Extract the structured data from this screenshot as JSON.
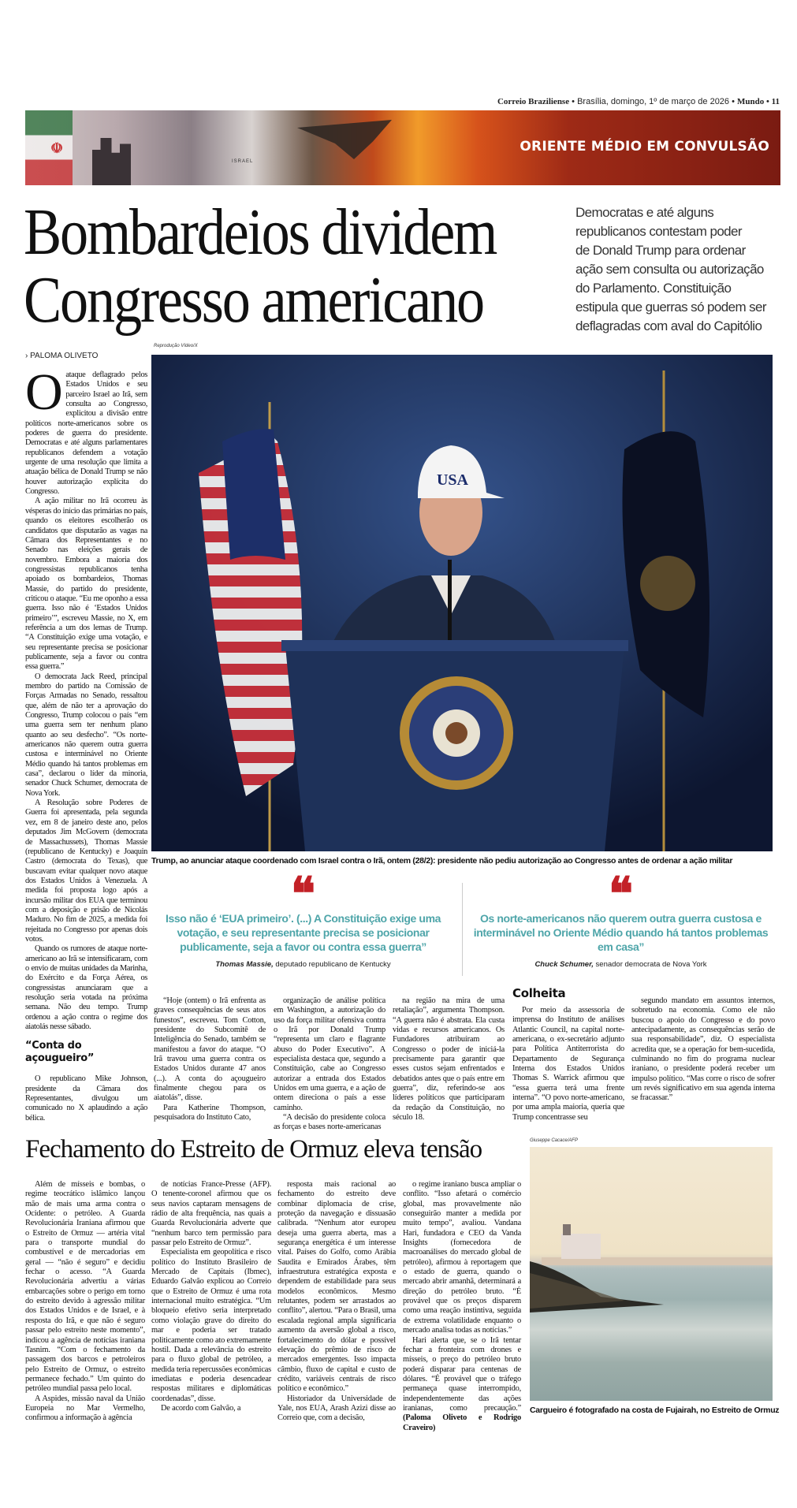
{
  "folio": {
    "paper": "Correio Braziliense",
    "date": "• Brasília, domingo, 1º de março de 2026 •",
    "section": "Mundo • 11"
  },
  "banner": {
    "title": "ORIENTE MÉDIO EM CONVULSÃO",
    "map_label": "ISRAEL"
  },
  "headline": [
    "Bombardeios dividem",
    "Congresso americano"
  ],
  "deck": [
    "Democratas e até alguns",
    "republicanos contestam poder",
    "de Donald Trump para ordenar",
    "ação sem consulta ou autorização",
    "do Parlamento. Constituição",
    "estipula que guerras só podem ser",
    "deflagradas com aval do Capitólio"
  ],
  "byline": "› PALOMA OLIVETO",
  "main_photo": {
    "credit": "Reprodução Vídeo/X",
    "cap_text": "USA",
    "caption": "Trump, ao anunciar ataque coordenado com Israel contra o Irã, ontem (28/2): presidente não pediu autorização ao Congresso antes de ordenar a ação militar"
  },
  "colors": {
    "quote_mark": "#c32127",
    "quote_text": "#4ea5a9"
  },
  "quotes": [
    {
      "text": "Isso não é ‘EUA primeiro’. (...) A Constituição exige uma votação, e seu representante precisa se posicionar publicamente, seja a favor ou contra essa guerra”",
      "name": "Thomas Massie,",
      "role": " deputado republicano de Kentucky"
    },
    {
      "text": "Os norte-americanos não querem outra guerra custosa e interminável no Oriente Médio quando há tantos problemas em casa”",
      "name": "Chuck Schumer,",
      "role": " senador democrata de Nova York"
    }
  ],
  "article1": {
    "dropcap": "O",
    "lead": " ataque deflagrado pelos Estados Unidos e seu parceiro Israel ao Irã, sem consulta ao Congresso, explicitou a divisão entre políticos norte-americanos sobre os poderes de guerra do presidente. Democratas e até alguns parlamentares republicanos defendem a votação urgente de uma resolução que limita a atuação bélica de Donald Trump se não houver autorização explícita do Congresso.",
    "col1": [
      "A ação militar no Irã ocorreu às vésperas do início das primárias no país, quando os eleitores escolherão os candidatos que disputarão as vagas na Câmara dos Representantes e no Senado nas eleições gerais de novembro. Embora a maioria dos congressistas republicanos tenha apoiado os bombardeios, Thomas Massie, do partido do presidente, criticou o ataque. “Eu me oponho a essa guerra. Isso não é ‘Estados Unidos primeiro’”, escreveu Massie, no X, em referência a um dos lemas de Trump. “A Constituição exige uma votação, e seu representante precisa se posicionar publicamente, seja a favor ou contra essa guerra.”",
      "O democrata Jack Reed, principal membro do partido na Comissão de Forças Armadas no Senado, ressaltou que, além de não ter a aprovação do Congresso, Trump colocou o país “em uma guerra sem ter nenhum plano quanto ao seu desfecho”. “Os norte-americanos não querem outra guerra custosa e interminável no Oriente Médio quando há tantos problemas em casa”, declarou o líder da minoria, senador Chuck Schumer, democrata de Nova York.",
      "A Resolução sobre Poderes de Guerra foi apresentada, pela segunda vez, em 8 de janeiro deste ano, pelos deputados Jim McGovern (democrata de Massachussets), Thomas Massie (republicano de Kentucky) e Joaquin Castro (democrata do Texas), que buscavam evitar qualquer novo ataque dos Estados Unidos à Venezuela. A medida foi proposta logo após a incursão militar dos EUA que terminou com a deposição e prisão de Nicolás Maduro. No fim de 2025, a medida foi rejeitada no Congresso por apenas dois votos.",
      "Quando os rumores de ataque norte-americano ao Irã se intensificaram, com o envio de muitas unidades da Marinha, do Exército e da Força Aérea, os congressistas anunciaram que a resolução seria votada na próxima semana. Não deu tempo. Trump ordenou a ação contra o regime dos aiatolás nesse sábado."
    ],
    "subhead1": "“Conta do açougueiro”",
    "col1_after": [
      "O republicano Mike Johnson, presidente da Câmara dos Representantes, divulgou um comunicado no X aplaudindo a ação bélica."
    ],
    "lower_cols": [
      [
        "“Hoje (ontem) o Irã enfrenta as graves consequências de seus atos funestos”, escreveu. Tom Cotton, presidente do Subcomitê de Inteligência do Senado, também se manifestou a favor do ataque. “O Irã travou uma guerra contra os Estados Unidos durante 47 anos (...). A conta do açougueiro finalmente chegou para os aiatolás”, disse.",
        "Para Katherine Thompson, pesquisadora do Instituto Cato,"
      ],
      [
        "organização de análise política em Washington, a autorização do uso da força militar ofensiva contra o Irã por Donald Trump “representa um claro e flagrante abuso do Poder Executivo”. A especialista destaca que, segundo a Constituição, cabe ao Congresso autorizar a entrada dos Estados Unidos em uma guerra, e a ação de ontem direciona o país a esse caminho.",
        "“A decisão do presidente coloca as forças e bases norte-americanas"
      ],
      [
        "na região na mira de uma retaliação”, argumenta Thompson. “A guerra não é abstrata. Ela custa vidas e recursos americanos. Os Fundadores atribuíram ao Congresso o poder de iniciá-la precisamente para garantir que esses custos sejam enfrentados e debatidos antes que o país entre em guerra”, diz, referindo-se aos líderes políticos que participaram da redação da Constituição, no século 18."
      ],
      [
        "Por meio da assessoria de imprensa do Instituto de análises Atlantic Council, na capital norte-americana, o ex-secretário adjunto para Política Antiterrorista do Departamento de Segurança Interna dos Estados Unidos Thomas S. Warrick afirmou que “essa guerra terá uma frente interna”. “O povo norte-americano, por uma ampla maioria, queria que Trump concentrasse seu"
      ],
      [
        "segundo mandato em assuntos internos, sobretudo na economia. Como ele não buscou o apoio do Congresso e do povo antecipadamente, as consequências serão de sua responsabilidade”, diz. O especialista acredita que, se a operação for bem-sucedida, culminando no fim do programa nuclear iraniano, o presidente poderá receber um impulso político. “Mas corre o risco de sofrer um revés significativo em sua agenda interna se fracassar.”"
      ]
    ],
    "subhead2": "Colheita"
  },
  "article2": {
    "headline": "Fechamento do Estreito de Ormuz eleva tensão",
    "cols": [
      [
        "Além de mísseis e bombas, o regime teocrático islâmico lançou mão de mais uma arma contra o Ocidente: o petróleo. A Guarda Revolucionária Iraniana afirmou que o Estreito de Ormuz — artéria vital para o transporte mundial do combustível e de mercadorias em geral — “não é seguro” e decidiu fechar o acesso. “A Guarda Revolucionária advertiu a várias embarcações sobre o perigo em torno do estreito devido à agressão militar dos Estados Unidos e de Israel, e à resposta do Irã, e que não é seguro passar pelo estreito neste momento”, indicou a agência de notícias iraniana Tasnim. “Com o fechamento da passagem dos barcos e petroleiros pelo Estreito de Ormuz, o estreito permanece fechado.” Um quinto do petróleo mundial passa pelo local.",
        "A Aspides, missão naval da União Europeia no Mar Vermelho, confirmou a informação à agência"
      ],
      [
        "de notícias France-Presse (AFP). O tenente-coronel afirmou que os seus navios captaram mensagens de rádio de alta frequência, nas quais a Guarda Revolucionária adverte que “nenhum barco tem permissão para passar pelo Estreito de Ormuz”.",
        "Especialista em geopolítica e risco político do Instituto Brasileiro de Mercado de Capitais (Ibmec), Eduardo Galvão explicou ao Correio que o Estreito de Ormuz é uma rota internacional muito estratégica. “Um bloqueio efetivo seria interpretado como violação grave do direito do mar e poderia ser tratado politicamente como ato extremamente hostil. Dada a relevância do estreito para o fluxo global de petróleo, a medida teria repercussões econômicas imediatas e poderia desencadear respostas militares e diplomáticas coordenadas”, disse.",
        "De acordo com Galvão, a"
      ],
      [
        "resposta mais racional ao fechamento do estreito deve combinar diplomacia de crise, proteção da navegação e dissuasão calibrada. “Nenhum ator europeu deseja uma guerra aberta, mas a segurança energética é um interesse vital. Países do Golfo, como Arábia Saudita e Emirados Árabes, têm infraestrutura estratégica exposta e dependem de estabilidade para seus modelos econômicos. Mesmo relutantes, podem ser arrastados ao conflito”, alertou. “Para o Brasil, uma escalada regional ampla significaria aumento da aversão global a risco, fortalecimento do dólar e possível elevação do prêmio de risco de mercados emergentes. Isso impacta câmbio, fluxo de capital e custo de crédito, variáveis centrais de risco político e econômico.”",
        "Historiador da Universidade de Yale, nos EUA, Arash Azizi disse ao Correio que, com a decisão,"
      ],
      [
        "o regime iraniano busca ampliar o conflito. “Isso afetará o comércio global, mas provavelmente não conseguirão manter a medida por muito tempo”, avaliou. Vandana Hari, fundadora e CEO da Vanda Insights (fornecedora de macroanálises do mercado global de petróleo), afirmou à reportagem que o estado de guerra, quando o mercado abrir amanhã, determinará a direção do petróleo bruto. “É provável que os preços disparem como uma reação instintiva, seguida de extrema volatilidade enquanto o mercado analisa todas as notícias.”",
        "Hari alerta que, se o Irã tentar fechar a fronteira com drones e mísseis, o preço do petróleo bruto poderá disparar para centenas de dólares. “É provável que o tráfego permaneça quase interrompido, independentemente das ações iranianas, como precaução.” "
      ]
    ],
    "signoff": "(Paloma Oliveto e Rodrigo Craveiro)",
    "photo_credit": "Giuseppe Cacace/AFP",
    "photo_caption": "Cargueiro é fotografado na costa de Fujairah, no Estreito de Ormuz"
  }
}
